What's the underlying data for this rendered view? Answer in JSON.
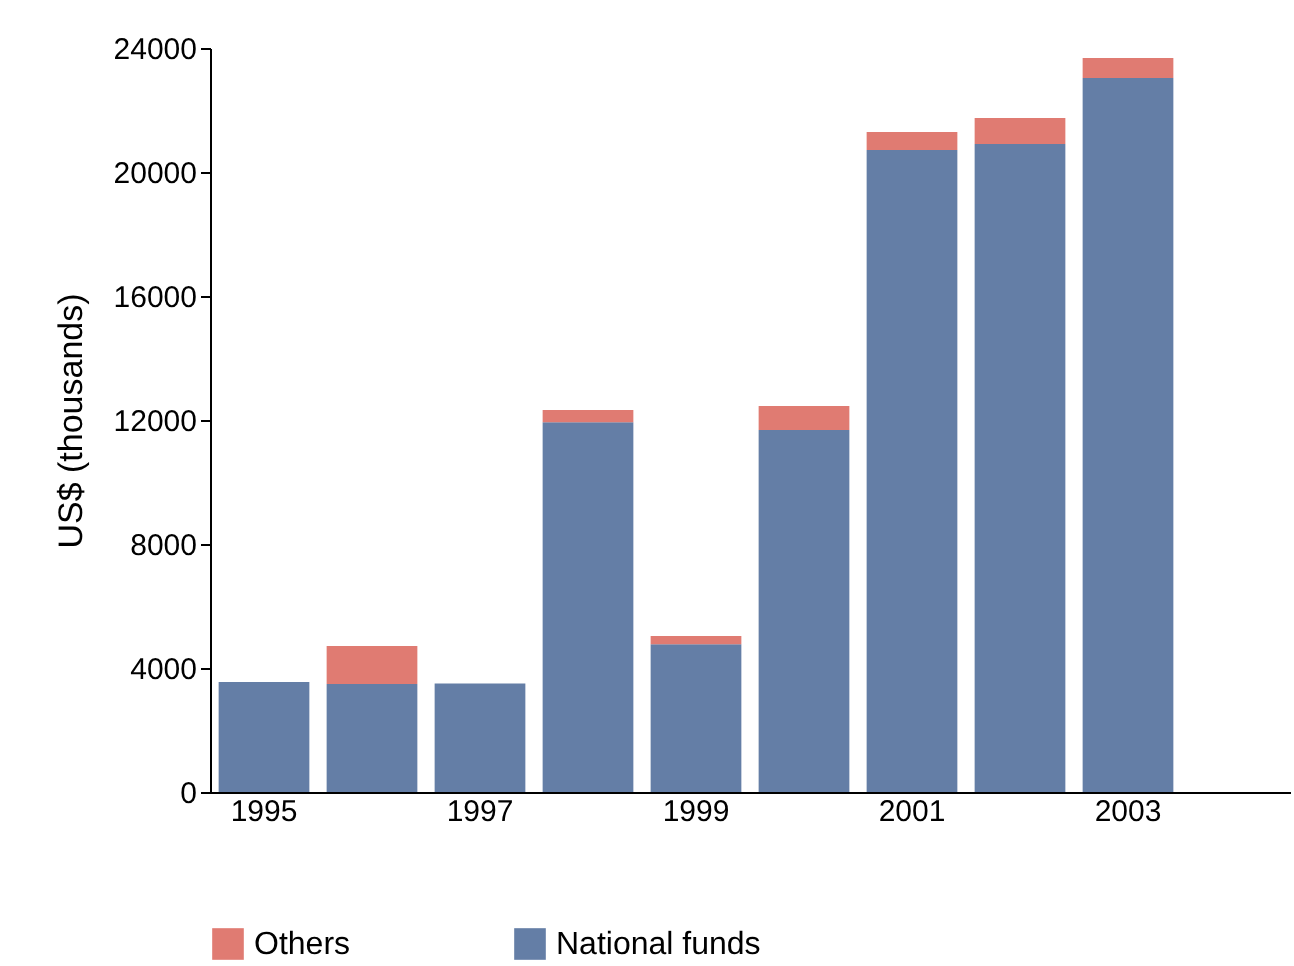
{
  "chart_data": {
    "type": "bar",
    "stacked": true,
    "ylabel": "US$ (thousands)",
    "categories": [
      "1995",
      null,
      "1997",
      null,
      "1999",
      null,
      "2001",
      null,
      "2003",
      null
    ],
    "ylim": [
      0,
      24000
    ],
    "yticks": [
      0,
      4000,
      8000,
      12000,
      16000,
      20000,
      24000
    ],
    "legend": "bottom",
    "grid": false,
    "series": [
      {
        "name": "National funds",
        "color": "#647ea6",
        "values": [
          3550,
          3480,
          3500,
          11930,
          4770,
          11680,
          20710,
          20900,
          23030,
          null
        ]
      },
      {
        "name": "Others",
        "color": "#e07b72",
        "values": [
          0,
          1230,
          0,
          390,
          260,
          770,
          580,
          840,
          650,
          null
        ]
      }
    ]
  }
}
